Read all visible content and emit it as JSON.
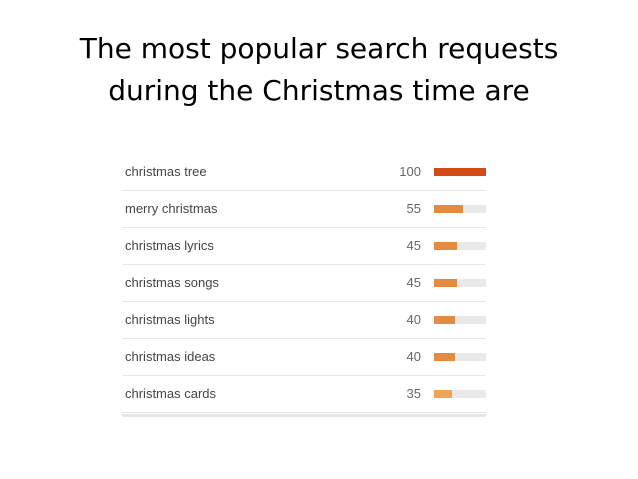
{
  "title": {
    "line1": "The most popular search requests",
    "line2": "during the Christmas time are"
  },
  "trends": [
    {
      "term": "christmas tree",
      "score": 100,
      "score_label": "100",
      "color": "#d34a17"
    },
    {
      "term": "merry christmas",
      "score": 55,
      "score_label": "55",
      "color": "#e38a43"
    },
    {
      "term": "christmas lyrics",
      "score": 45,
      "score_label": "45",
      "color": "#e38a43"
    },
    {
      "term": "christmas songs",
      "score": 45,
      "score_label": "45",
      "color": "#e38a43"
    },
    {
      "term": "christmas lights",
      "score": 40,
      "score_label": "40",
      "color": "#e38a43"
    },
    {
      "term": "christmas ideas",
      "score": 40,
      "score_label": "40",
      "color": "#e38a43"
    },
    {
      "term": "christmas cards",
      "score": 35,
      "score_label": "35",
      "color": "#f0a556"
    }
  ],
  "colors": {
    "bar_track": "#e9e9e9",
    "divider": "#e6e6e6"
  }
}
